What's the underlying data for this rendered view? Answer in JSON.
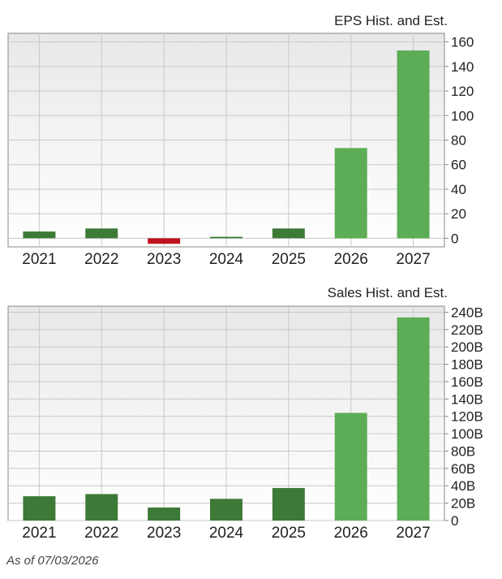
{
  "chart_data": [
    {
      "type": "bar",
      "title": "EPS Hist. and Est.",
      "categories": [
        "2021",
        "2022",
        "2023",
        "2024",
        "2025",
        "2026",
        "2027"
      ],
      "values": [
        5.5,
        8,
        -4.5,
        1.2,
        8,
        73.5,
        153
      ],
      "bar_colors": [
        "#3d7a37",
        "#3d7a37",
        "#c0121e",
        "#3d7a37",
        "#3d7a37",
        "#5cad55",
        "#5cad55"
      ],
      "yticks": [
        {
          "value": 0,
          "label": "0"
        },
        {
          "value": 20,
          "label": "20"
        },
        {
          "value": 40,
          "label": "40"
        },
        {
          "value": 60,
          "label": "60"
        },
        {
          "value": 80,
          "label": "80"
        },
        {
          "value": 100,
          "label": "100"
        },
        {
          "value": 120,
          "label": "120"
        },
        {
          "value": 140,
          "label": "140"
        },
        {
          "value": 160,
          "label": "160"
        }
      ],
      "ylim": [
        -7,
        167
      ],
      "grid": true,
      "axis_side": "right",
      "xlabel": "",
      "ylabel": ""
    },
    {
      "type": "bar",
      "title": "Sales Hist. and Est.",
      "categories": [
        "2021",
        "2022",
        "2023",
        "2024",
        "2025",
        "2026",
        "2027"
      ],
      "values": [
        28,
        30.5,
        15,
        25,
        37.5,
        124,
        234
      ],
      "bar_colors": [
        "#3d7a37",
        "#3d7a37",
        "#3d7a37",
        "#3d7a37",
        "#3d7a37",
        "#5cad55",
        "#5cad55"
      ],
      "yticks": [
        {
          "value": 0,
          "label": "0"
        },
        {
          "value": 20,
          "label": "20B"
        },
        {
          "value": 40,
          "label": "40B"
        },
        {
          "value": 60,
          "label": "60B"
        },
        {
          "value": 80,
          "label": "80B"
        },
        {
          "value": 100,
          "label": "100B"
        },
        {
          "value": 120,
          "label": "120B"
        },
        {
          "value": 140,
          "label": "140B"
        },
        {
          "value": 160,
          "label": "160B"
        },
        {
          "value": 180,
          "label": "180B"
        },
        {
          "value": 200,
          "label": "200B"
        },
        {
          "value": 220,
          "label": "220B"
        },
        {
          "value": 240,
          "label": "240B"
        }
      ],
      "ylim": [
        0,
        247
      ],
      "grid": true,
      "axis_side": "right",
      "xlabel": "",
      "ylabel": ""
    }
  ],
  "footnote": "As of 07/03/2026",
  "colors": {
    "plot_background_top": "#e8e8e8",
    "plot_background_bottom": "#ffffff",
    "grid": "#c8c8c8",
    "axis": "#888888",
    "text": "#222222"
  }
}
